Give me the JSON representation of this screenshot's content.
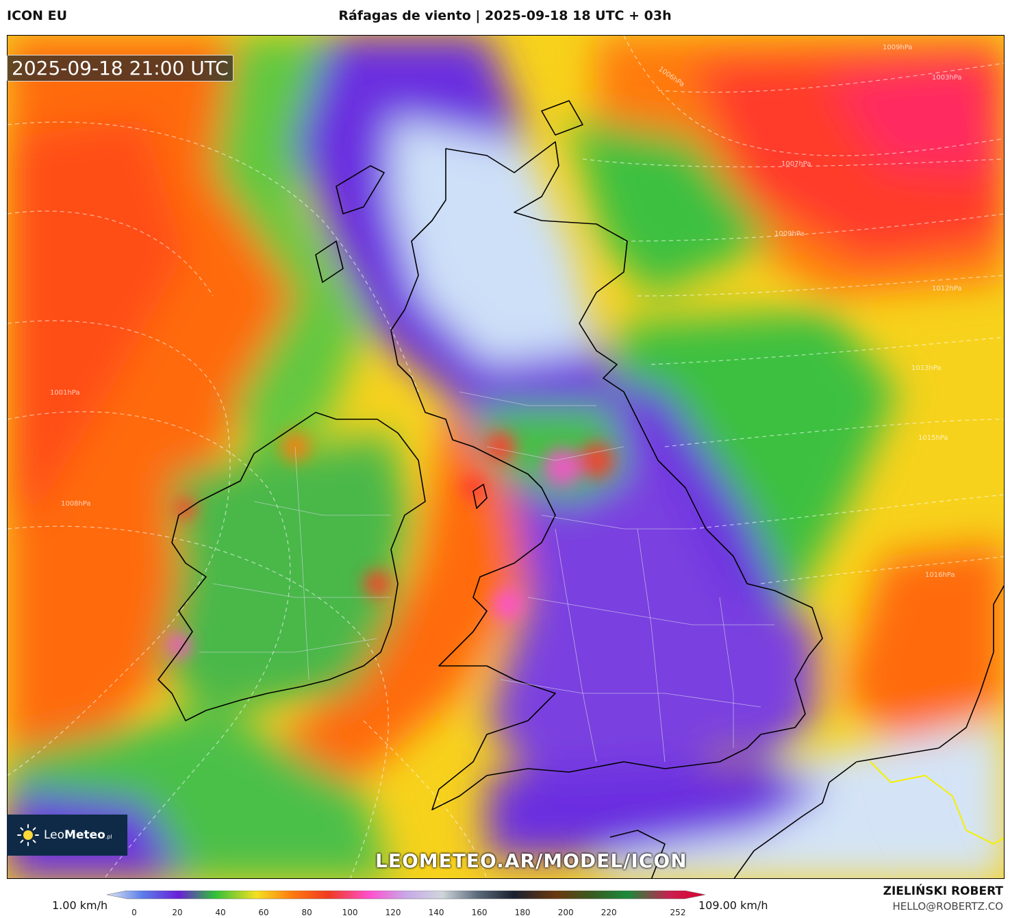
{
  "header": {
    "model": "ICON EU",
    "title": "Ráfagas de viento | 2025-09-18 18 UTC + 03h"
  },
  "map": {
    "valid_time": "2025-09-18 21:00 UTC",
    "isobar_labels": [
      "1009hPa",
      "1006hPa",
      "1003hPa",
      "1007hPa",
      "1009hPa",
      "1012hPa",
      "1013hPa",
      "1015hPa",
      "1001hPa",
      "1008hPa",
      "1016hPa"
    ],
    "watermark_url": "LEOMETEO.AR/MODEL/ICON",
    "logo": {
      "prefix": "Leo",
      "suffix": "Meteo",
      "tld": ".pl"
    }
  },
  "legend": {
    "min_label": "1.00 km/h",
    "max_label": "109.00 km/h",
    "ticks": [
      "0",
      "20",
      "40",
      "60",
      "80",
      "100",
      "120",
      "140",
      "160",
      "180",
      "200",
      "220",
      "252"
    ],
    "colors": [
      "#dde8f5",
      "#5b7de8",
      "#6a1fd8",
      "#2fbf3a",
      "#f5e020",
      "#ff7a10",
      "#f03a20",
      "#ff50d0",
      "#c8a8e8",
      "#cfd6dc",
      "#5a6a7a",
      "#1a2030",
      "#6a3810",
      "#3a5a20",
      "#1a8a3a",
      "#c82050",
      "#e00030"
    ]
  },
  "credits": {
    "author": "ZIELIŃSKI ROBERT",
    "email": "HELLO@ROBERTZ.CO"
  }
}
